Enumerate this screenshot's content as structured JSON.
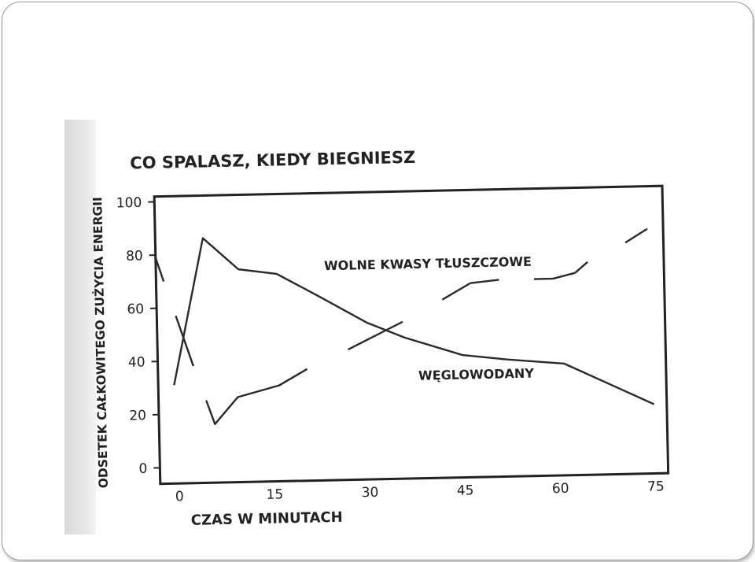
{
  "chart_data": {
    "type": "line",
    "title": "CO SPALASZ, KIEDY BIEGNIESZ",
    "xlabel": "CZAS W MINUTACH",
    "ylabel": "ODSETEK CAŁKOWITEGO ZUŻYCIA ENERGII",
    "xlim": [
      -3,
      77
    ],
    "ylim": [
      -6,
      102
    ],
    "xticks": [
      0,
      15,
      30,
      45,
      60,
      75
    ],
    "yticks": [
      0,
      20,
      40,
      60,
      80,
      100
    ],
    "grid": false,
    "legend": "none",
    "series": [
      {
        "name": "WĘGLOWODANY",
        "label_pos": {
          "x": 38,
          "y": 31
        },
        "segments": [
          {
            "x": [
              -0.5,
              4.5,
              10,
              16,
              22,
              30,
              36,
              45,
              52,
              61,
              75
            ],
            "y": [
              31,
              86,
              74,
              72,
              64,
              53,
              47,
              40,
              38,
              36,
              20
            ]
          },
          {
            "x": [
              -3,
              -1.8
            ],
            "y": [
              79,
              70
            ]
          },
          {
            "x": [
              0,
              2.6
            ],
            "y": [
              57,
              38
            ]
          }
        ]
      },
      {
        "name": "WOLNE KWASY TŁUSZCZOWE",
        "label_pos": {
          "x": 23.5,
          "y": 73
        },
        "segments": [
          {
            "x": [
              4.5,
              5.8,
              9.5,
              16,
              20.5
            ],
            "y": [
              25,
              16,
              26,
              30,
              36
            ]
          },
          {
            "x": [
              27,
              35.7
            ],
            "y": [
              43,
              53
            ]
          },
          {
            "x": [
              42,
              46.5
            ],
            "y": [
              61,
              67
            ]
          },
          {
            "x": [
              46.5,
              51
            ],
            "y": [
              67,
              68
            ]
          },
          {
            "x": [
              56.5,
              59.5
            ],
            "y": [
              68,
              68
            ]
          },
          {
            "x": [
              59.5,
              63
            ],
            "y": [
              68,
              70
            ]
          },
          {
            "x": [
              63,
              65
            ],
            "y": [
              70,
              74
            ]
          },
          {
            "x": [
              71,
              74.5
            ],
            "y": [
              81,
              86
            ]
          }
        ]
      }
    ]
  }
}
